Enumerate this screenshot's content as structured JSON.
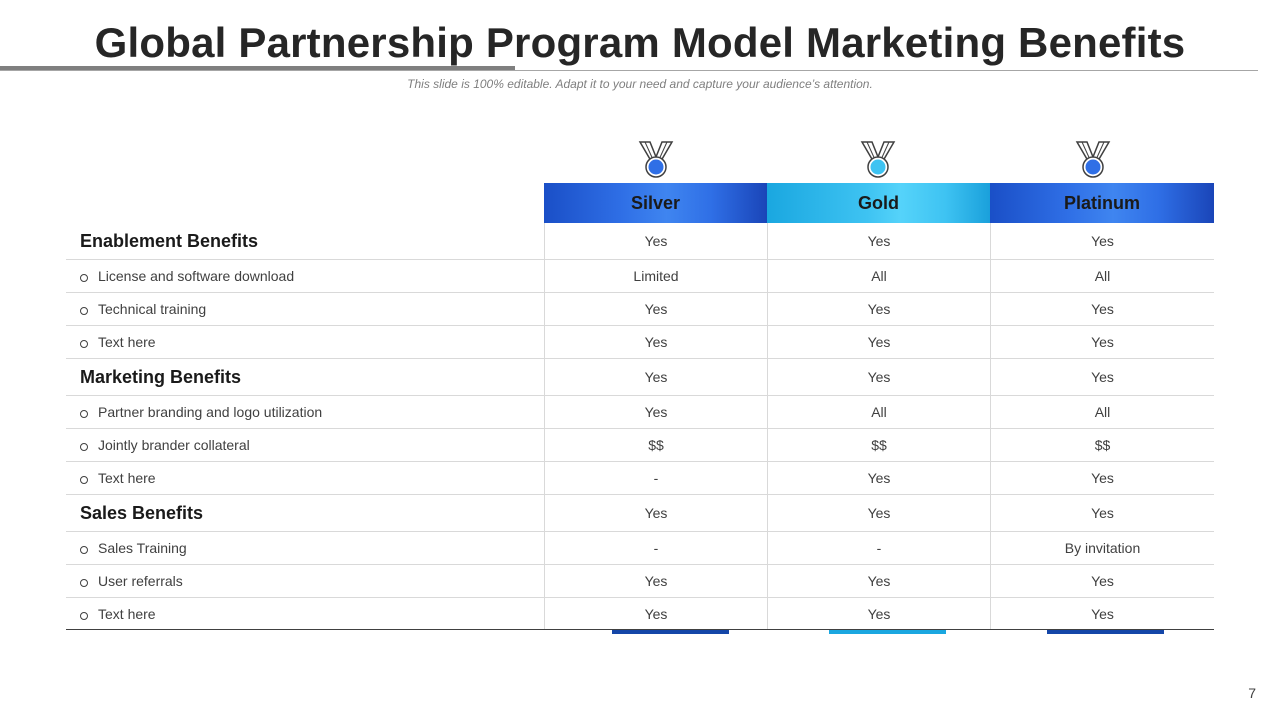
{
  "slide": {
    "title": "Global Partnership Program Model Marketing Benefits",
    "subtitle": "This slide is 100% editable. Adapt it to your need and capture your audience’s attention.",
    "page_number": "7"
  },
  "tiers": [
    {
      "label": "Silver",
      "icon": "medal-icon",
      "color": "#2f6fe6"
    },
    {
      "label": "Gold",
      "icon": "medal-icon",
      "color": "#3ec3f2"
    },
    {
      "label": "Platinum",
      "icon": "medal-icon",
      "color": "#2f6fe6"
    }
  ],
  "rows": [
    {
      "type": "head",
      "label": "Enablement Benefits",
      "values": [
        "Yes",
        "Yes",
        "Yes"
      ]
    },
    {
      "type": "sub",
      "label": "License and software download",
      "values": [
        "Limited",
        "All",
        "All"
      ]
    },
    {
      "type": "sub",
      "label": "Technical training",
      "values": [
        "Yes",
        "Yes",
        "Yes"
      ]
    },
    {
      "type": "sub",
      "label": "Text here",
      "values": [
        "Yes",
        "Yes",
        "Yes"
      ]
    },
    {
      "type": "head",
      "label": "Marketing Benefits",
      "values": [
        "Yes",
        "Yes",
        "Yes"
      ]
    },
    {
      "type": "sub",
      "label": "Partner branding and logo utilization",
      "values": [
        "Yes",
        "All",
        "All"
      ]
    },
    {
      "type": "sub",
      "label": "Jointly brander collateral",
      "values": [
        "$$",
        "$$",
        "$$"
      ]
    },
    {
      "type": "sub",
      "label": "Text here",
      "values": [
        "-",
        "Yes",
        "Yes"
      ]
    },
    {
      "type": "head",
      "label": "Sales Benefits",
      "values": [
        "Yes",
        "Yes",
        "Yes"
      ]
    },
    {
      "type": "sub",
      "label": "Sales Training",
      "values": [
        "-",
        "-",
        "By invitation"
      ]
    },
    {
      "type": "sub",
      "label": "User referrals",
      "values": [
        "Yes",
        "Yes",
        "Yes"
      ]
    },
    {
      "type": "sub",
      "label": "Text here",
      "values": [
        "Yes",
        "Yes",
        "Yes"
      ]
    }
  ]
}
